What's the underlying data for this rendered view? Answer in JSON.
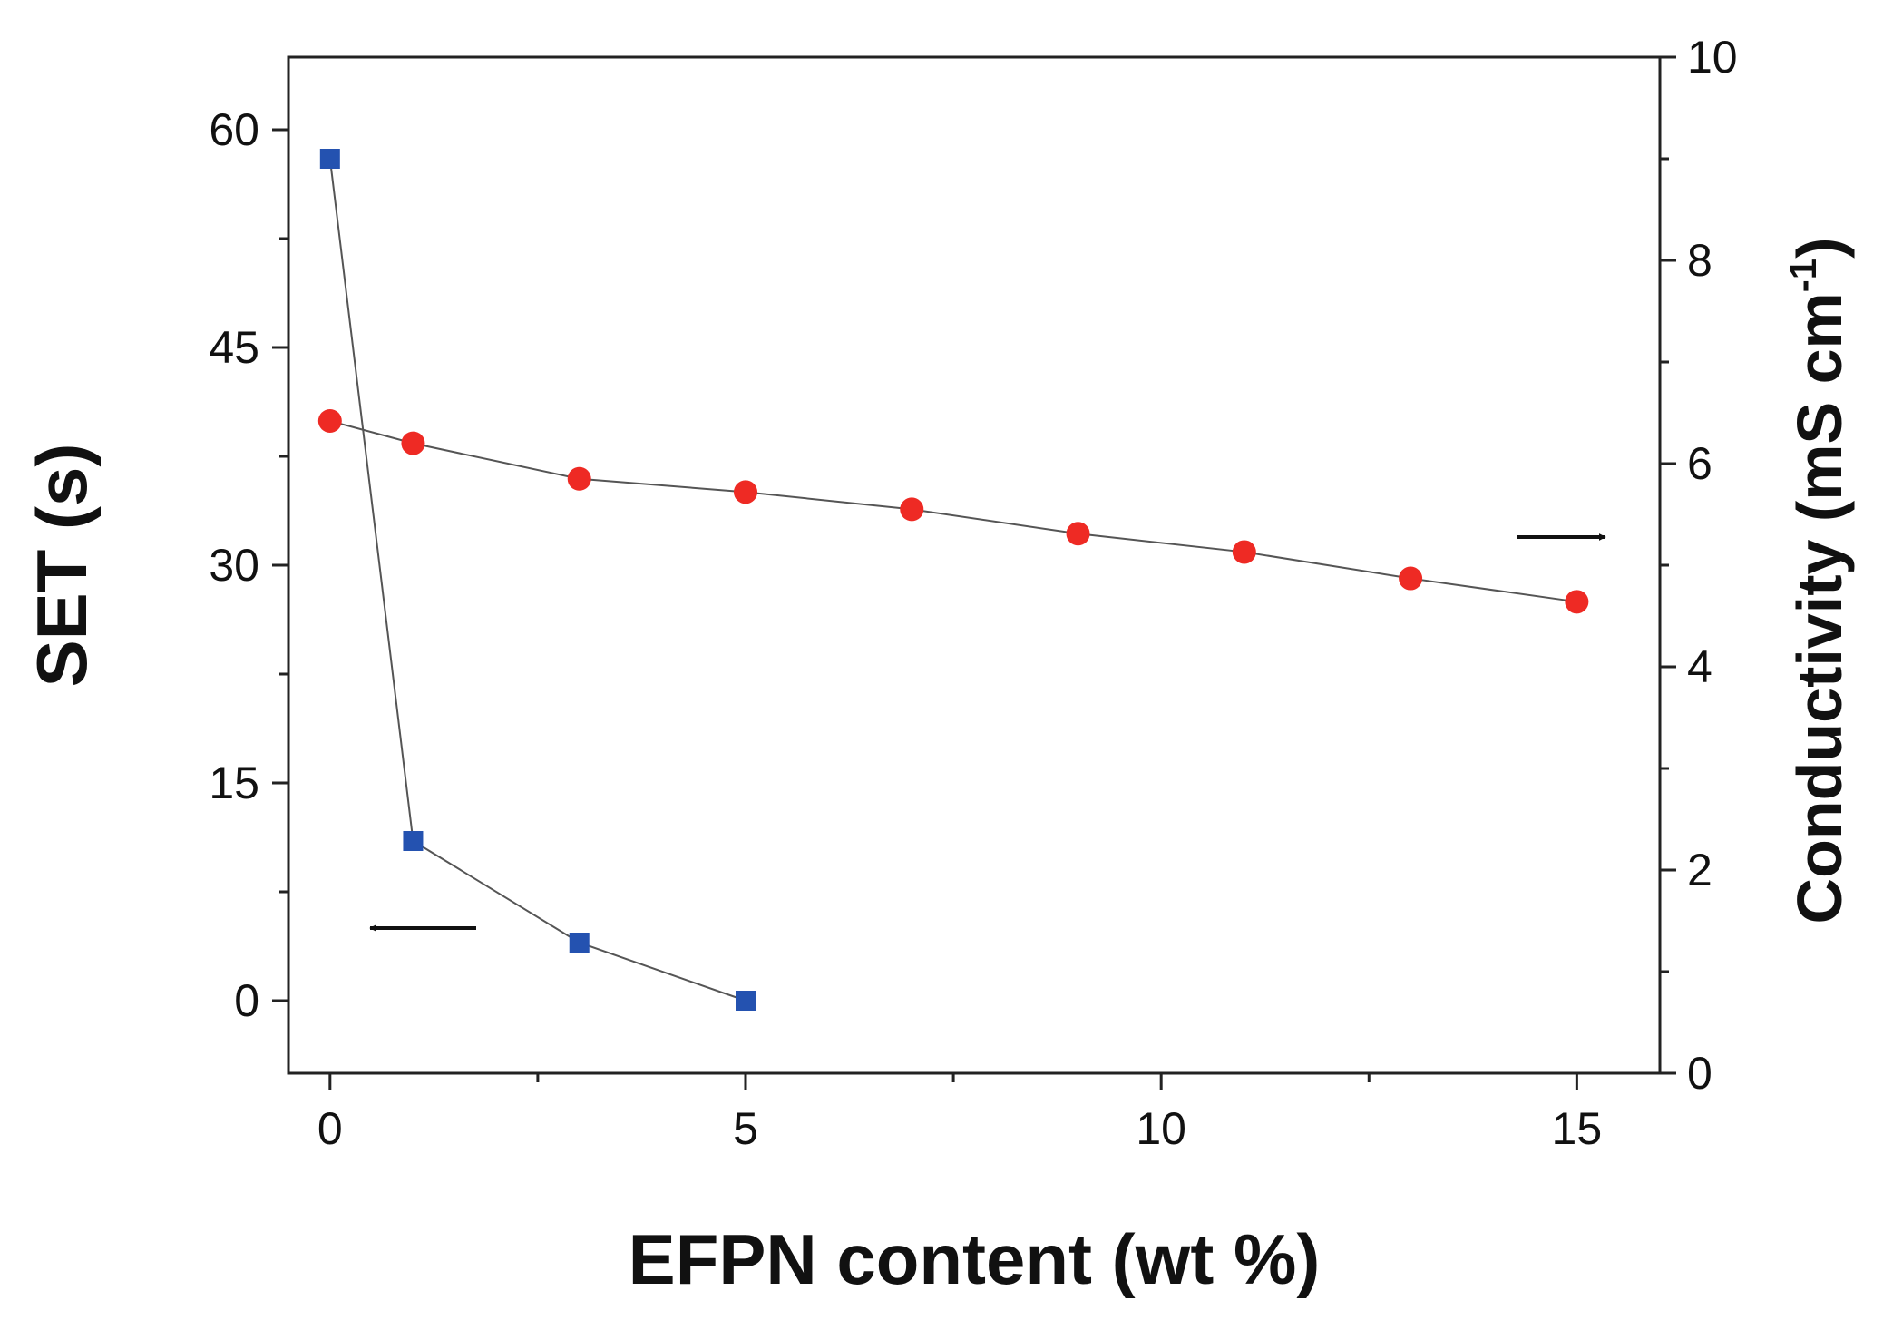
{
  "chart_data": {
    "type": "line",
    "xlabel": "EFPN content (wt %)",
    "ylabel": "SET (s)",
    "y2label_main": "Conductivity (mS cm",
    "y2label_sup": "-1",
    "y2label_tail": ")",
    "xlim": [
      -0.5,
      16
    ],
    "ylim": [
      -5,
      65
    ],
    "y2lim": [
      0,
      10
    ],
    "xticks": [
      0,
      5,
      10,
      15
    ],
    "yticks": [
      0,
      15,
      30,
      45,
      60
    ],
    "y2ticks": [
      0,
      2,
      4,
      6,
      8,
      10
    ],
    "grid": false,
    "series": [
      {
        "axis": "left",
        "marker": "square",
        "color": "#2452b0",
        "x": [
          0,
          1,
          3,
          5
        ],
        "values": [
          58,
          11,
          4,
          0
        ]
      },
      {
        "axis": "right",
        "marker": "circle",
        "color": "#ee2a24",
        "x": [
          0,
          1,
          3,
          5,
          7,
          9,
          11,
          13,
          15
        ],
        "values": [
          6.42,
          6.2,
          5.85,
          5.72,
          5.55,
          5.31,
          5.13,
          4.87,
          4.64
        ]
      }
    ],
    "annotations": [
      {
        "name": "left-arrow",
        "target_axis": "left"
      },
      {
        "name": "right-arrow",
        "target_axis": "right"
      }
    ]
  }
}
